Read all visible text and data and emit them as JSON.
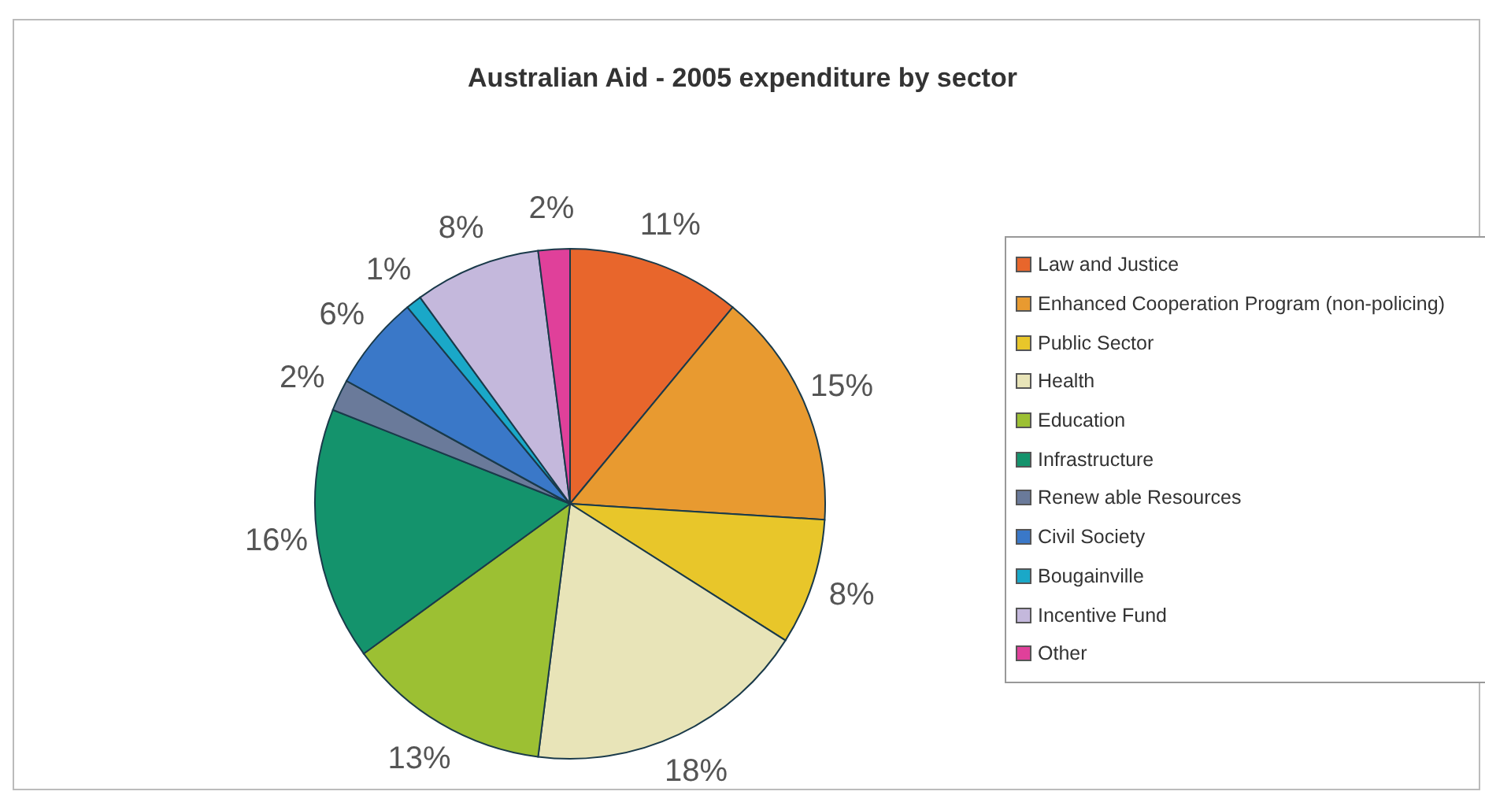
{
  "chart_data": {
    "type": "pie",
    "title": "Australian Aid - 2005 expenditure by sector",
    "categories": [
      "Law and Justice",
      "Enhanced Cooperation Program (non-policing)",
      "Public Sector",
      "Health",
      "Education",
      "Infrastructure",
      "Renew able Resources",
      "Civil Society",
      "Bougainville",
      "Incentive Fund",
      "Other"
    ],
    "values": [
      11,
      15,
      8,
      18,
      13,
      16,
      2,
      6,
      1,
      8,
      2
    ],
    "colors": [
      "#e8662c",
      "#e89a30",
      "#e8c62a",
      "#e8e4b8",
      "#9cc033",
      "#14936c",
      "#6a7a9a",
      "#3a78c8",
      "#1aa8c8",
      "#c4b8dc",
      "#e0409a"
    ],
    "value_labels": [
      "11%",
      "15%",
      "8%",
      "18%",
      "13%",
      "16%",
      "2%",
      "6%",
      "1%",
      "8%",
      "2%"
    ],
    "legend": "right"
  }
}
